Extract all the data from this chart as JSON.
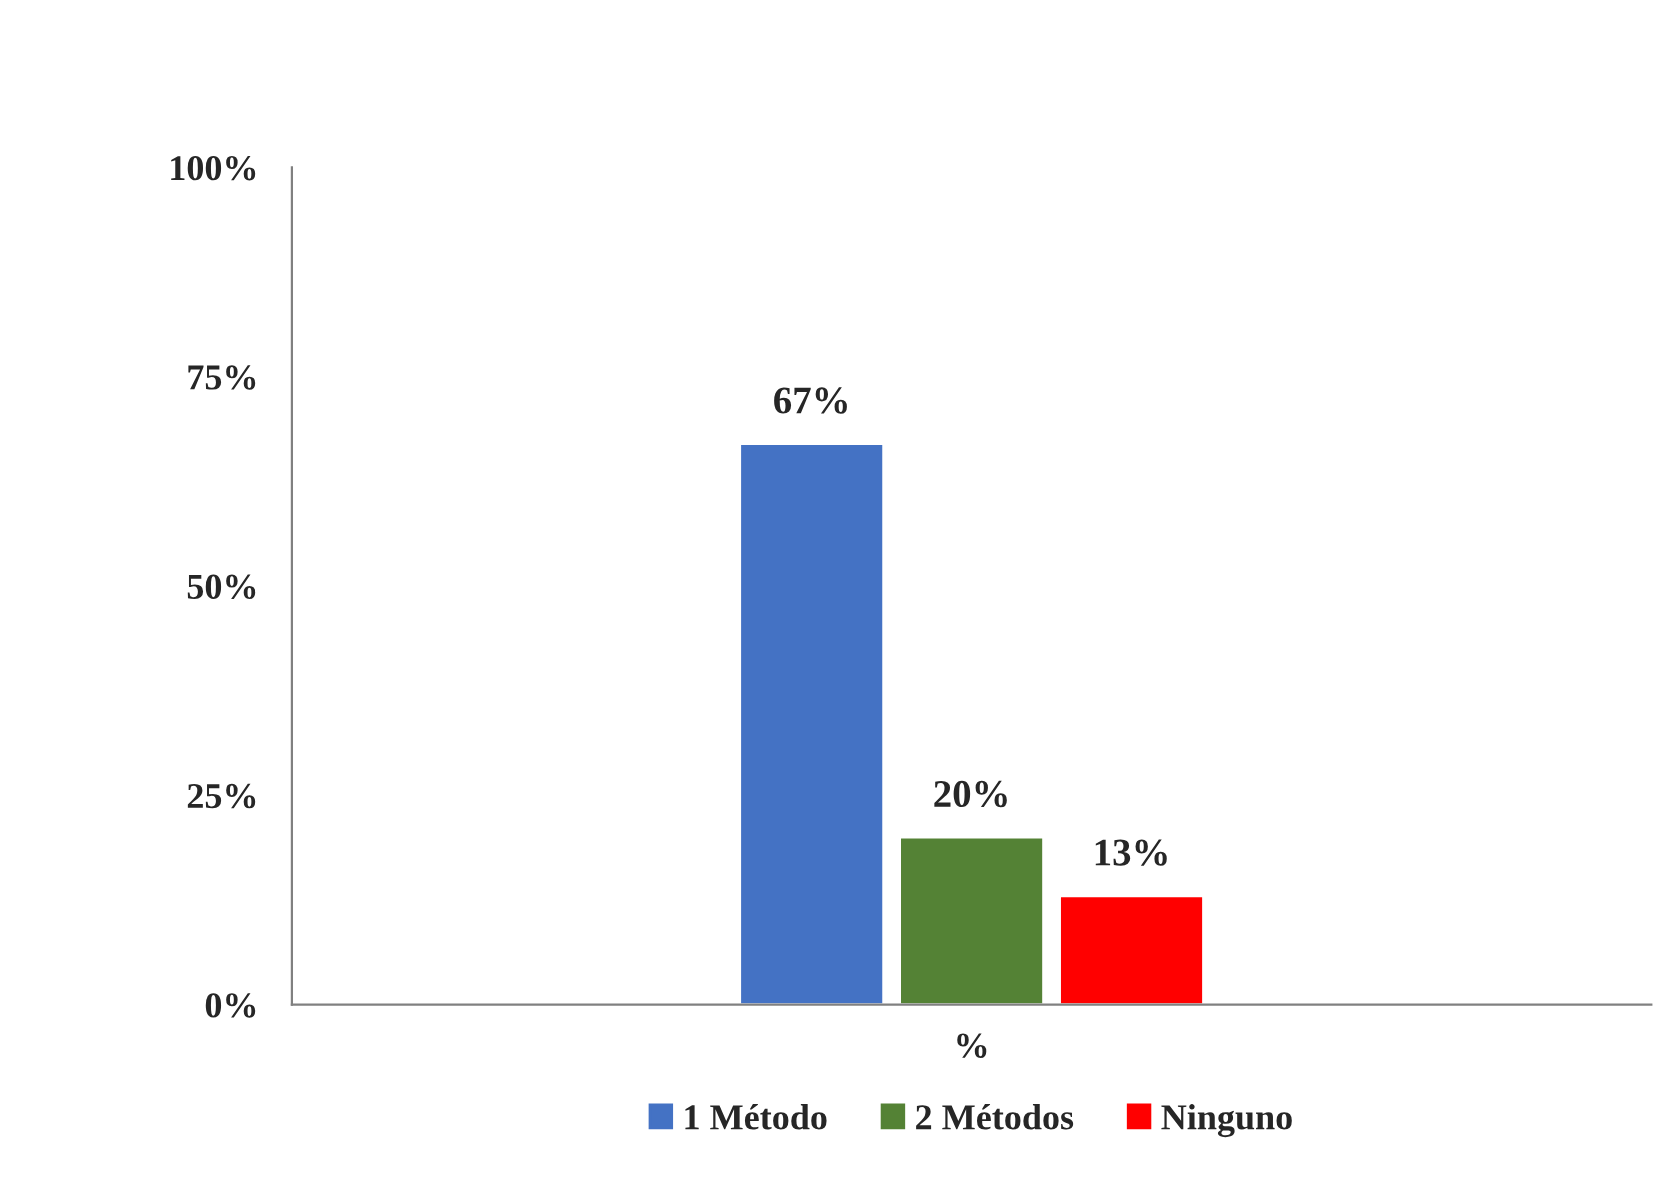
{
  "chart_data": {
    "type": "bar",
    "categories": [
      "%"
    ],
    "series": [
      {
        "name": "1 Método",
        "color": "#4472c4",
        "values": [
          67
        ],
        "value_labels": [
          "67%"
        ]
      },
      {
        "name": "2 Métodos",
        "color": "#548235",
        "values": [
          20
        ],
        "value_labels": [
          "20%"
        ]
      },
      {
        "name": "Ninguno",
        "color": "#ff0000",
        "values": [
          13
        ],
        "value_labels": [
          "13%"
        ]
      }
    ],
    "ylim": [
      0,
      100
    ],
    "yticks": [
      {
        "value": 0,
        "label": "0%"
      },
      {
        "value": 25,
        "label": "25%"
      },
      {
        "value": 50,
        "label": "50%"
      },
      {
        "value": 75,
        "label": "75%"
      },
      {
        "value": 100,
        "label": "100%"
      }
    ],
    "grid": false,
    "legend": "bottom"
  }
}
